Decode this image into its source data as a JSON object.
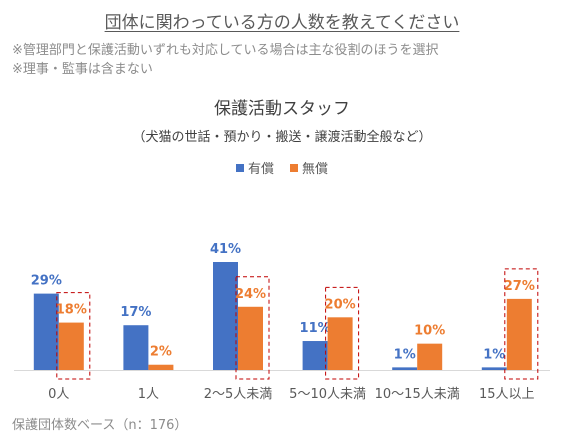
{
  "header": {
    "title": "団体に関わっている方の人数を教えてください",
    "note1": "※管理部門と保護活動いずれも対応している場合は主な役割のほうを選択",
    "note2": "※理事・監事は含まない"
  },
  "footnote": "保護団体数ベース（n：176）",
  "colors": {
    "paid": "#4472c4",
    "unpaid": "#ed7d31",
    "highlight": "#c00000"
  },
  "chart_data": {
    "type": "bar",
    "title": "保護活動スタッフ",
    "subtitle": "（犬猫の世話・預かり・搬送・譲渡活動全般など）",
    "categories": [
      "0人",
      "1人",
      "2〜5人未満",
      "5〜10人未満",
      "10〜15人未満",
      "15人以上"
    ],
    "series": [
      {
        "name": "有償",
        "values": [
          29,
          17,
          41,
          11,
          1,
          1
        ],
        "labels": [
          "29%",
          "17%",
          "41%",
          "11%",
          "1%",
          "1%"
        ]
      },
      {
        "name": "無償",
        "values": [
          18,
          2,
          24,
          20,
          10,
          27
        ],
        "labels": [
          "18%",
          "2%",
          "24%",
          "20%",
          "10%",
          "27%"
        ]
      }
    ],
    "highlighted_unpaid": [
      0,
      2,
      3,
      5
    ],
    "ylim": [
      0,
      41
    ],
    "grid": false,
    "legend": "top-center"
  }
}
